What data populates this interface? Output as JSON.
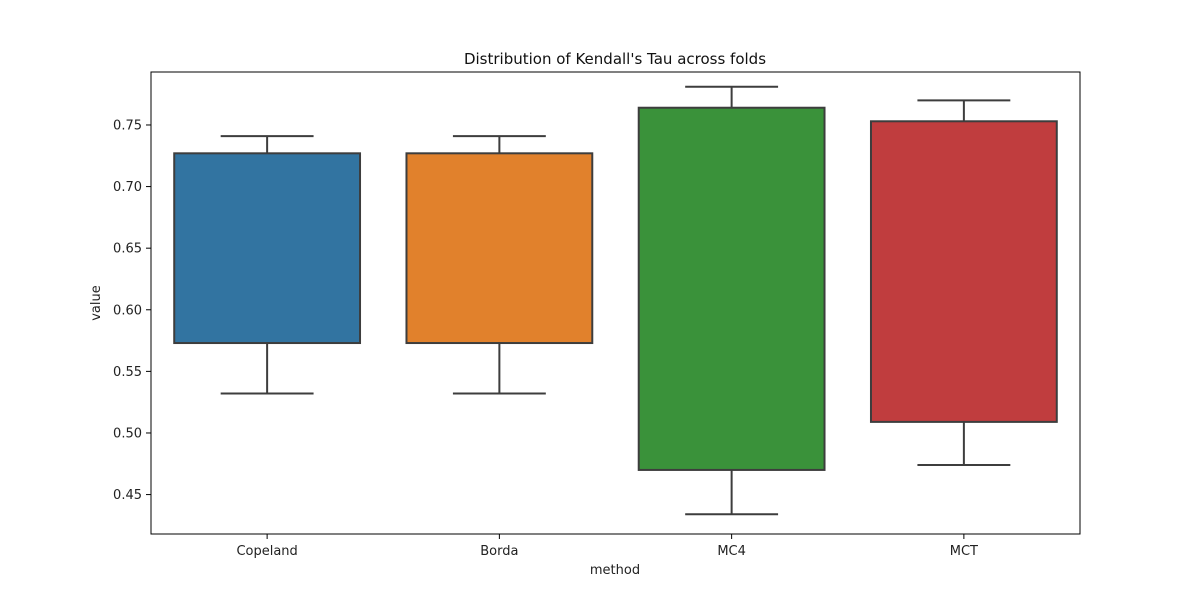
{
  "chart_data": {
    "type": "box",
    "title": "Distribution of Kendall's Tau across folds",
    "xlabel": "method",
    "ylabel": "value",
    "categories": [
      "Copeland",
      "Borda",
      "MC4",
      "MCT"
    ],
    "colors": [
      "#3274a1",
      "#e1812c",
      "#3a923a",
      "#c03d3e"
    ],
    "edge_color": "#3d3d3d",
    "ylim": [
      0.418,
      0.793
    ],
    "yticks": [
      0.45,
      0.5,
      0.55,
      0.6,
      0.65,
      0.7,
      0.75
    ],
    "ytick_labels": [
      "0.45",
      "0.50",
      "0.55",
      "0.60",
      "0.65",
      "0.70",
      "0.75"
    ],
    "boxes": [
      {
        "name": "Copeland",
        "whisker_low": 0.532,
        "q1": 0.573,
        "q3": 0.727,
        "whisker_high": 0.741
      },
      {
        "name": "Borda",
        "whisker_low": 0.532,
        "q1": 0.573,
        "q3": 0.727,
        "whisker_high": 0.741
      },
      {
        "name": "MC4",
        "whisker_low": 0.434,
        "q1": 0.47,
        "q3": 0.764,
        "whisker_high": 0.781
      },
      {
        "name": "MCT",
        "whisker_low": 0.474,
        "q1": 0.509,
        "q3": 0.753,
        "whisker_high": 0.77
      }
    ]
  }
}
